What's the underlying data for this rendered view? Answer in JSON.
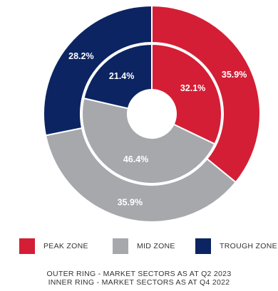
{
  "chart_data": {
    "type": "pie",
    "variant": "nested-donut",
    "categories": [
      "PEAK ZONE",
      "MID ZONE",
      "TROUGH ZONE"
    ],
    "colors": [
      "#d41e35",
      "#a7a8ac",
      "#0c2461"
    ],
    "series": [
      {
        "name": "OUTER RING - MARKET SECTORS AS AT Q2 2023",
        "ring": "outer",
        "values": [
          35.9,
          35.9,
          28.2
        ],
        "labels": [
          "35.9%",
          "35.9%",
          "28.2%"
        ]
      },
      {
        "name": "INNER RING - MARKET SECTORS AS AT Q4 2022",
        "ring": "inner",
        "values": [
          32.1,
          46.4,
          21.4
        ],
        "labels": [
          "32.1%",
          "46.4%",
          "21.4%"
        ]
      }
    ],
    "legend_position": "bottom"
  },
  "legend": {
    "items": [
      {
        "label": "PEAK ZONE",
        "color": "#d41e35"
      },
      {
        "label": "MID ZONE",
        "color": "#a7a8ac"
      },
      {
        "label": "TROUGH ZONE",
        "color": "#0c2461"
      }
    ]
  },
  "captions": {
    "outer": "OUTER RING - MARKET SECTORS AS AT Q2 2023",
    "inner": "INNER RING - MARKET SECTORS AS AT Q4 2022"
  }
}
